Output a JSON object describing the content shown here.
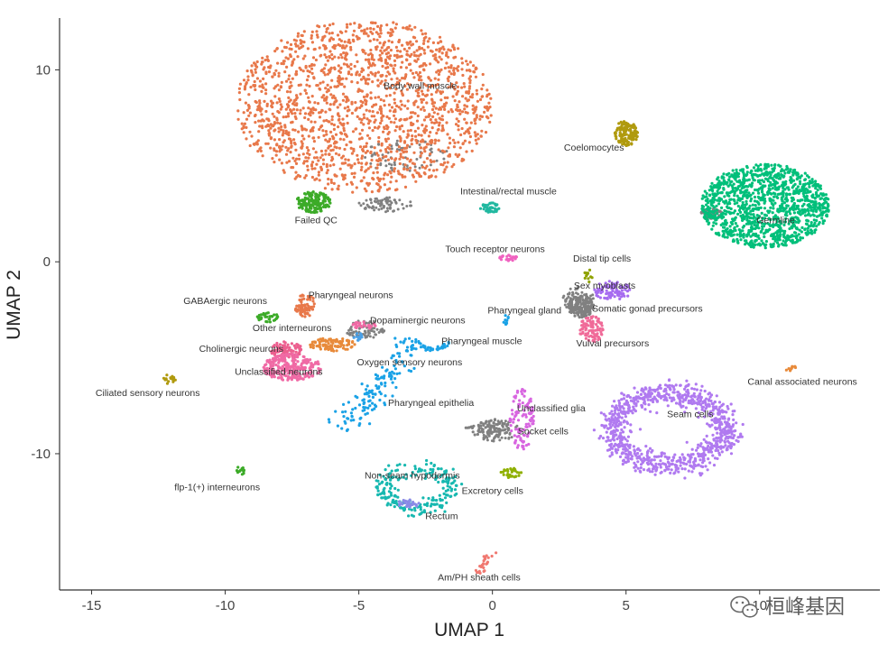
{
  "chart_data": {
    "type": "scatter",
    "xlabel": "UMAP 1",
    "ylabel": "UMAP 2",
    "xlim": [
      -16.2,
      14.5
    ],
    "ylim": [
      -17.1,
      12.7
    ],
    "xticks": [
      -15,
      -10,
      -5,
      0,
      5,
      10
    ],
    "xtick_labels": [
      "-15",
      "-10",
      "-5",
      "0",
      "5",
      "10"
    ],
    "yticks": [
      10,
      0,
      -10
    ],
    "ytick_labels": [
      "10",
      "0",
      "-10"
    ],
    "grid": false,
    "legend": "none",
    "clusters": [
      {
        "name": "Body wall muscle",
        "shape": "blob",
        "cx": -4.8,
        "cy": 8.1,
        "rx": 4.8,
        "ry": 4.5,
        "n": 1700,
        "color": "#e8784a",
        "label_x": -2.7,
        "label_y": 9.0
      },
      {
        "name": "Coelomocytes",
        "shape": "blob",
        "cx": 5.0,
        "cy": 6.7,
        "rx": 0.45,
        "ry": 0.65,
        "n": 140,
        "color": "#b09a0e",
        "label_x": 3.8,
        "label_y": 5.8
      },
      {
        "name": "Failed QC",
        "shape": "blob",
        "cx": -6.7,
        "cy": 3.1,
        "rx": 0.65,
        "ry": 0.55,
        "n": 160,
        "color": "#3cab28",
        "label_x": -6.6,
        "label_y": 2.0
      },
      {
        "name": "Intestinal/rectal muscle",
        "shape": "blob",
        "cx": -0.1,
        "cy": 2.8,
        "rx": 0.35,
        "ry": 0.3,
        "n": 40,
        "color": "#21b8a0",
        "label_x": 0.6,
        "label_y": 3.5
      },
      {
        "name": "Germline",
        "shape": "blob",
        "cx": 10.2,
        "cy": 2.9,
        "rx": 2.4,
        "ry": 2.2,
        "n": 1200,
        "color": "#00bf7a",
        "label_x": 10.6,
        "label_y": 2.0
      },
      {
        "name": "Touch receptor neurons",
        "shape": "blob",
        "cx": 0.6,
        "cy": 0.2,
        "rx": 0.35,
        "ry": 0.15,
        "n": 25,
        "color": "#f062c0",
        "label_x": 0.1,
        "label_y": 0.5
      },
      {
        "name": "Distal tip cells",
        "shape": "blob",
        "cx": 3.6,
        "cy": -0.7,
        "rx": 0.15,
        "ry": 0.4,
        "n": 12,
        "color": "#8fa200",
        "label_x": 4.1,
        "label_y": 0.0
      },
      {
        "name": "Sex myoblasts",
        "shape": "blob",
        "cx": 4.5,
        "cy": -1.5,
        "rx": 0.7,
        "ry": 0.5,
        "n": 90,
        "color": "#a66cf0",
        "label_x": 4.2,
        "label_y": -1.4
      },
      {
        "name": "Somatic gonad precursors",
        "shape": "blob",
        "cx": 3.3,
        "cy": -2.3,
        "rx": 0.5,
        "ry": 0.6,
        "n": 150,
        "color": "#808080",
        "label_x": 5.8,
        "label_y": -2.6
      },
      {
        "name": "Vulval precursors",
        "shape": "blob",
        "cx": 3.7,
        "cy": -3.5,
        "rx": 0.45,
        "ry": 0.7,
        "n": 90,
        "color": "#f06a98",
        "label_x": 4.5,
        "label_y": -4.4
      },
      {
        "name": "Pharyngeal gland",
        "shape": "blob",
        "cx": 0.5,
        "cy": -3.0,
        "rx": 0.1,
        "ry": 0.3,
        "n": 10,
        "color": "#1aa2e6",
        "label_x": 1.2,
        "label_y": -2.7
      },
      {
        "name": "Pharyngeal neurons",
        "shape": "blob",
        "cx": -7.0,
        "cy": -2.3,
        "rx": 0.4,
        "ry": 0.6,
        "n": 70,
        "color": "#e8784a",
        "label_x": -5.3,
        "label_y": -1.9
      },
      {
        "name": "GABAergic neurons",
        "shape": "blob",
        "cx": -8.4,
        "cy": -2.9,
        "rx": 0.4,
        "ry": 0.25,
        "n": 35,
        "color": "#3cab28",
        "label_x": -10.0,
        "label_y": -2.2
      },
      {
        "name": "Dopaminergic neurons",
        "shape": "blob",
        "cx": -4.8,
        "cy": -3.3,
        "rx": 0.45,
        "ry": 0.2,
        "n": 30,
        "color": "#f06aa5",
        "label_x": -2.8,
        "label_y": -3.2
      },
      {
        "name": "Other interneurons",
        "shape": "blob",
        "cx": -6.0,
        "cy": -4.3,
        "rx": 0.9,
        "ry": 0.35,
        "n": 90,
        "color": "#e88a3a",
        "label_x": -7.5,
        "label_y": -3.6
      },
      {
        "name": "Cholinergic neurons",
        "shape": "blob",
        "cx": -7.7,
        "cy": -4.6,
        "rx": 0.6,
        "ry": 0.45,
        "n": 100,
        "color": "#ec5f8f",
        "label_x": -9.4,
        "label_y": -4.7
      },
      {
        "name": "Unclassified neurons",
        "shape": "blob",
        "cx": -7.5,
        "cy": -5.5,
        "rx": 1.1,
        "ry": 0.7,
        "n": 260,
        "color": "#f06aa5",
        "label_x": -8.0,
        "label_y": -5.9
      },
      {
        "name": "Ciliated sensory neurons",
        "shape": "blob",
        "cx": -12.1,
        "cy": -6.1,
        "rx": 0.25,
        "ry": 0.25,
        "n": 18,
        "color": "#b09a0e",
        "label_x": -12.9,
        "label_y": -7.0
      },
      {
        "name": "Pharyngeal muscle",
        "shape": "arc",
        "cx": -2.2,
        "cy": -4.2,
        "rx": 0.5,
        "ry": 0.35,
        "a0": 180,
        "a1": 360,
        "n": 30,
        "color": "#1aa2e6",
        "label_x": -0.4,
        "label_y": -4.3
      },
      {
        "name": "Oxygen sensory neurons",
        "shape": "blob",
        "cx": -5.0,
        "cy": -3.9,
        "rx": 0.2,
        "ry": 0.2,
        "n": 12,
        "color": "#4aa0e6",
        "label_x": -3.1,
        "label_y": -5.4
      },
      {
        "name": "Pharyngeal epithelia",
        "shape": "line",
        "x0": -2.8,
        "y0": -4.0,
        "x1": -5.6,
        "y1": -8.6,
        "w": 0.3,
        "n": 150,
        "color": "#1aa2e6",
        "label_x": -2.3,
        "label_y": -7.5
      },
      {
        "name": "Unclassified glia",
        "shape": "blob",
        "cx": 1.1,
        "cy": -8.2,
        "rx": 0.45,
        "ry": 1.6,
        "n": 110,
        "color": "#d866e0",
        "label_x": 2.2,
        "label_y": -7.8
      },
      {
        "name": "Socket cells",
        "shape": "blob",
        "cx": -0.2,
        "cy": -8.7,
        "rx": 0.8,
        "ry": 0.5,
        "n": 60,
        "color": "#808080",
        "label_x": 1.9,
        "label_y": -9.0
      },
      {
        "name": "Seam cells",
        "shape": "ring",
        "cx": 6.6,
        "cy": -8.7,
        "rx": 2.1,
        "ry": 1.9,
        "thick": 0.3,
        "n": 900,
        "color": "#b07af0",
        "label_x": 7.4,
        "label_y": -8.1
      },
      {
        "name": "Canal associated neurons",
        "shape": "line",
        "x0": 11.0,
        "y0": -5.6,
        "x1": 11.5,
        "y1": -5.4,
        "w": 0.05,
        "n": 10,
        "color": "#e88a3a",
        "label_x": 11.6,
        "label_y": -6.4
      },
      {
        "name": "flp-1(+) interneurons",
        "shape": "blob",
        "cx": -9.4,
        "cy": -10.9,
        "rx": 0.2,
        "ry": 0.25,
        "n": 12,
        "color": "#3cab28",
        "label_x": -10.3,
        "label_y": -11.9
      },
      {
        "name": "Non-seam hypodermis",
        "shape": "ring",
        "cx": -2.8,
        "cy": -11.8,
        "rx": 1.3,
        "ry": 1.0,
        "thick": 0.2,
        "n": 220,
        "color": "#17b8b0",
        "label_x": -3.0,
        "label_y": -11.3
      },
      {
        "name": "Excretory cells",
        "shape": "blob",
        "cx": 0.7,
        "cy": -11.0,
        "rx": 0.4,
        "ry": 0.25,
        "n": 30,
        "color": "#8fb000",
        "label_x": 0.0,
        "label_y": -12.1
      },
      {
        "name": "Rectum",
        "shape": "blob",
        "cx": -3.1,
        "cy": -12.6,
        "rx": 0.45,
        "ry": 0.2,
        "n": 30,
        "color": "#8a8ae6",
        "label_x": -1.9,
        "label_y": -13.4
      },
      {
        "name": "Am/PH sheath cells",
        "shape": "line",
        "x0": -0.5,
        "y0": -16.2,
        "x1": -0.1,
        "y1": -15.1,
        "w": 0.1,
        "n": 25,
        "color": "#f07870",
        "label_x": -0.5,
        "label_y": -16.6
      }
    ]
  },
  "watermark": {
    "text": "桓峰基因",
    "icon": "wechat-icon"
  }
}
